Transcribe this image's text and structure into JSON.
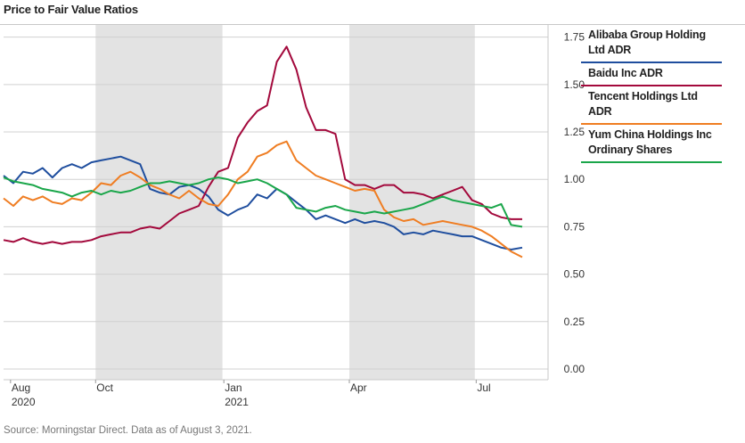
{
  "chart_data": {
    "type": "line",
    "title": "Price to Fair Value Ratios",
    "ylim": [
      0,
      1.8
    ],
    "y_ticks": [
      "1.75",
      "1.50",
      "1.25",
      "1.00",
      "0.75",
      "0.50",
      "0.25",
      "0.00"
    ],
    "x_labels": [
      {
        "month": "Aug",
        "year": "2020"
      },
      {
        "month": "Oct",
        "year": ""
      },
      {
        "month": "Jan",
        "year": "2021"
      },
      {
        "month": "Apr",
        "year": ""
      },
      {
        "month": "Jul",
        "year": ""
      }
    ],
    "x_range": [
      "2020-07-27",
      "2021-08-03"
    ],
    "shaded_periods": [
      [
        "2020-10-01",
        "2020-12-31"
      ],
      [
        "2021-04-01",
        "2021-06-30"
      ]
    ],
    "grid": "horizontal",
    "legend_position": "right",
    "series": [
      {
        "name": "Alibaba Group Holding Ltd ADR",
        "color": "#1f4e9e",
        "points": [
          [
            "2020-07-27",
            1.02
          ],
          [
            "2020-08-03",
            0.98
          ],
          [
            "2020-08-10",
            1.04
          ],
          [
            "2020-08-17",
            1.03
          ],
          [
            "2020-08-24",
            1.06
          ],
          [
            "2020-08-31",
            1.01
          ],
          [
            "2020-09-07",
            1.06
          ],
          [
            "2020-09-14",
            1.08
          ],
          [
            "2020-09-21",
            1.06
          ],
          [
            "2020-09-28",
            1.09
          ],
          [
            "2020-10-05",
            1.1
          ],
          [
            "2020-10-12",
            1.11
          ],
          [
            "2020-10-19",
            1.12
          ],
          [
            "2020-10-26",
            1.1
          ],
          [
            "2020-11-02",
            1.08
          ],
          [
            "2020-11-09",
            0.95
          ],
          [
            "2020-11-16",
            0.93
          ],
          [
            "2020-11-23",
            0.92
          ],
          [
            "2020-11-30",
            0.96
          ],
          [
            "2020-12-07",
            0.97
          ],
          [
            "2020-12-14",
            0.95
          ],
          [
            "2020-12-21",
            0.91
          ],
          [
            "2020-12-28",
            0.84
          ],
          [
            "2021-01-04",
            0.81
          ],
          [
            "2021-01-11",
            0.84
          ],
          [
            "2021-01-18",
            0.86
          ],
          [
            "2021-01-25",
            0.92
          ],
          [
            "2021-02-01",
            0.9
          ],
          [
            "2021-02-08",
            0.95
          ],
          [
            "2021-02-15",
            0.92
          ],
          [
            "2021-02-22",
            0.88
          ],
          [
            "2021-03-01",
            0.84
          ],
          [
            "2021-03-08",
            0.79
          ],
          [
            "2021-03-15",
            0.81
          ],
          [
            "2021-03-22",
            0.79
          ],
          [
            "2021-03-29",
            0.77
          ],
          [
            "2021-04-05",
            0.79
          ],
          [
            "2021-04-12",
            0.77
          ],
          [
            "2021-04-19",
            0.78
          ],
          [
            "2021-04-26",
            0.77
          ],
          [
            "2021-05-03",
            0.75
          ],
          [
            "2021-05-10",
            0.71
          ],
          [
            "2021-05-17",
            0.72
          ],
          [
            "2021-05-24",
            0.71
          ],
          [
            "2021-05-31",
            0.73
          ],
          [
            "2021-06-07",
            0.72
          ],
          [
            "2021-06-14",
            0.71
          ],
          [
            "2021-06-21",
            0.7
          ],
          [
            "2021-06-28",
            0.7
          ],
          [
            "2021-07-05",
            0.68
          ],
          [
            "2021-07-12",
            0.66
          ],
          [
            "2021-07-19",
            0.64
          ],
          [
            "2021-07-26",
            0.63
          ],
          [
            "2021-08-03",
            0.64
          ]
        ]
      },
      {
        "name": "Baidu Inc ADR",
        "color": "#a3093c",
        "points": [
          [
            "2020-07-27",
            0.68
          ],
          [
            "2020-08-03",
            0.67
          ],
          [
            "2020-08-10",
            0.69
          ],
          [
            "2020-08-17",
            0.67
          ],
          [
            "2020-08-24",
            0.66
          ],
          [
            "2020-08-31",
            0.67
          ],
          [
            "2020-09-07",
            0.66
          ],
          [
            "2020-09-14",
            0.67
          ],
          [
            "2020-09-21",
            0.67
          ],
          [
            "2020-09-28",
            0.68
          ],
          [
            "2020-10-05",
            0.7
          ],
          [
            "2020-10-12",
            0.71
          ],
          [
            "2020-10-19",
            0.72
          ],
          [
            "2020-10-26",
            0.72
          ],
          [
            "2020-11-02",
            0.74
          ],
          [
            "2020-11-09",
            0.75
          ],
          [
            "2020-11-16",
            0.74
          ],
          [
            "2020-11-23",
            0.78
          ],
          [
            "2020-11-30",
            0.82
          ],
          [
            "2020-12-07",
            0.84
          ],
          [
            "2020-12-14",
            0.86
          ],
          [
            "2020-12-21",
            0.96
          ],
          [
            "2020-12-28",
            1.04
          ],
          [
            "2021-01-04",
            1.06
          ],
          [
            "2021-01-11",
            1.22
          ],
          [
            "2021-01-18",
            1.3
          ],
          [
            "2021-01-25",
            1.36
          ],
          [
            "2021-02-01",
            1.39
          ],
          [
            "2021-02-08",
            1.62
          ],
          [
            "2021-02-15",
            1.7
          ],
          [
            "2021-02-22",
            1.58
          ],
          [
            "2021-03-01",
            1.38
          ],
          [
            "2021-03-08",
            1.26
          ],
          [
            "2021-03-15",
            1.26
          ],
          [
            "2021-03-22",
            1.24
          ],
          [
            "2021-03-29",
            1.0
          ],
          [
            "2021-04-05",
            0.97
          ],
          [
            "2021-04-12",
            0.97
          ],
          [
            "2021-04-19",
            0.95
          ],
          [
            "2021-04-26",
            0.97
          ],
          [
            "2021-05-03",
            0.97
          ],
          [
            "2021-05-10",
            0.93
          ],
          [
            "2021-05-17",
            0.93
          ],
          [
            "2021-05-24",
            0.92
          ],
          [
            "2021-05-31",
            0.9
          ],
          [
            "2021-06-07",
            0.92
          ],
          [
            "2021-06-14",
            0.94
          ],
          [
            "2021-06-21",
            0.96
          ],
          [
            "2021-06-28",
            0.89
          ],
          [
            "2021-07-05",
            0.87
          ],
          [
            "2021-07-12",
            0.82
          ],
          [
            "2021-07-19",
            0.8
          ],
          [
            "2021-07-26",
            0.79
          ],
          [
            "2021-08-03",
            0.79
          ]
        ]
      },
      {
        "name": "Tencent Holdings Ltd ADR",
        "color": "#ef7d22",
        "points": [
          [
            "2020-07-27",
            0.9
          ],
          [
            "2020-08-03",
            0.86
          ],
          [
            "2020-08-10",
            0.91
          ],
          [
            "2020-08-17",
            0.89
          ],
          [
            "2020-08-24",
            0.91
          ],
          [
            "2020-08-31",
            0.88
          ],
          [
            "2020-09-07",
            0.87
          ],
          [
            "2020-09-14",
            0.9
          ],
          [
            "2020-09-21",
            0.89
          ],
          [
            "2020-09-28",
            0.93
          ],
          [
            "2020-10-05",
            0.98
          ],
          [
            "2020-10-12",
            0.97
          ],
          [
            "2020-10-19",
            1.02
          ],
          [
            "2020-10-26",
            1.04
          ],
          [
            "2020-11-02",
            1.01
          ],
          [
            "2020-11-09",
            0.97
          ],
          [
            "2020-11-16",
            0.95
          ],
          [
            "2020-11-23",
            0.92
          ],
          [
            "2020-11-30",
            0.9
          ],
          [
            "2020-12-07",
            0.94
          ],
          [
            "2020-12-14",
            0.9
          ],
          [
            "2020-12-21",
            0.87
          ],
          [
            "2020-12-28",
            0.86
          ],
          [
            "2021-01-04",
            0.92
          ],
          [
            "2021-01-11",
            1.0
          ],
          [
            "2021-01-18",
            1.04
          ],
          [
            "2021-01-25",
            1.12
          ],
          [
            "2021-02-01",
            1.14
          ],
          [
            "2021-02-08",
            1.18
          ],
          [
            "2021-02-15",
            1.2
          ],
          [
            "2021-02-22",
            1.1
          ],
          [
            "2021-03-01",
            1.06
          ],
          [
            "2021-03-08",
            1.02
          ],
          [
            "2021-03-15",
            1.0
          ],
          [
            "2021-03-22",
            0.98
          ],
          [
            "2021-03-29",
            0.96
          ],
          [
            "2021-04-05",
            0.94
          ],
          [
            "2021-04-12",
            0.95
          ],
          [
            "2021-04-19",
            0.94
          ],
          [
            "2021-04-26",
            0.84
          ],
          [
            "2021-05-03",
            0.8
          ],
          [
            "2021-05-10",
            0.78
          ],
          [
            "2021-05-17",
            0.79
          ],
          [
            "2021-05-24",
            0.76
          ],
          [
            "2021-05-31",
            0.77
          ],
          [
            "2021-06-07",
            0.78
          ],
          [
            "2021-06-14",
            0.77
          ],
          [
            "2021-06-21",
            0.76
          ],
          [
            "2021-06-28",
            0.75
          ],
          [
            "2021-07-05",
            0.73
          ],
          [
            "2021-07-12",
            0.7
          ],
          [
            "2021-07-19",
            0.66
          ],
          [
            "2021-07-26",
            0.62
          ],
          [
            "2021-08-03",
            0.59
          ]
        ]
      },
      {
        "name": "Yum China Holdings Inc Ordinary Shares",
        "color": "#1aa64a",
        "points": [
          [
            "2020-07-27",
            1.01
          ],
          [
            "2020-08-03",
            0.99
          ],
          [
            "2020-08-10",
            0.98
          ],
          [
            "2020-08-17",
            0.97
          ],
          [
            "2020-08-24",
            0.95
          ],
          [
            "2020-08-31",
            0.94
          ],
          [
            "2020-09-07",
            0.93
          ],
          [
            "2020-09-14",
            0.91
          ],
          [
            "2020-09-21",
            0.93
          ],
          [
            "2020-09-28",
            0.94
          ],
          [
            "2020-10-05",
            0.92
          ],
          [
            "2020-10-12",
            0.94
          ],
          [
            "2020-10-19",
            0.93
          ],
          [
            "2020-10-26",
            0.94
          ],
          [
            "2020-11-02",
            0.96
          ],
          [
            "2020-11-09",
            0.98
          ],
          [
            "2020-11-16",
            0.98
          ],
          [
            "2020-11-23",
            0.99
          ],
          [
            "2020-11-30",
            0.98
          ],
          [
            "2020-12-07",
            0.97
          ],
          [
            "2020-12-14",
            0.98
          ],
          [
            "2020-12-21",
            1.0
          ],
          [
            "2020-12-28",
            1.01
          ],
          [
            "2021-01-04",
            1.0
          ],
          [
            "2021-01-11",
            0.98
          ],
          [
            "2021-01-18",
            0.99
          ],
          [
            "2021-01-25",
            1.0
          ],
          [
            "2021-02-01",
            0.98
          ],
          [
            "2021-02-08",
            0.95
          ],
          [
            "2021-02-15",
            0.92
          ],
          [
            "2021-02-22",
            0.85
          ],
          [
            "2021-03-01",
            0.84
          ],
          [
            "2021-03-08",
            0.83
          ],
          [
            "2021-03-15",
            0.85
          ],
          [
            "2021-03-22",
            0.86
          ],
          [
            "2021-03-29",
            0.84
          ],
          [
            "2021-04-05",
            0.83
          ],
          [
            "2021-04-12",
            0.82
          ],
          [
            "2021-04-19",
            0.83
          ],
          [
            "2021-04-26",
            0.82
          ],
          [
            "2021-05-03",
            0.83
          ],
          [
            "2021-05-10",
            0.84
          ],
          [
            "2021-05-17",
            0.85
          ],
          [
            "2021-05-24",
            0.87
          ],
          [
            "2021-05-31",
            0.89
          ],
          [
            "2021-06-07",
            0.91
          ],
          [
            "2021-06-14",
            0.89
          ],
          [
            "2021-06-21",
            0.88
          ],
          [
            "2021-06-28",
            0.87
          ],
          [
            "2021-07-05",
            0.86
          ],
          [
            "2021-07-12",
            0.85
          ],
          [
            "2021-07-19",
            0.87
          ],
          [
            "2021-07-26",
            0.76
          ],
          [
            "2021-08-03",
            0.75
          ]
        ]
      }
    ]
  },
  "legend_items": [
    {
      "label": "Alibaba Group Holding Ltd ADR",
      "color": "#1f4e9e"
    },
    {
      "label": "Baidu Inc ADR",
      "color": "#a3093c"
    },
    {
      "label": "Tencent Holdings Ltd ADR",
      "color": "#ef7d22"
    },
    {
      "label": "Yum China Holdings Inc Ordinary Shares",
      "color": "#1aa64a"
    }
  ],
  "source": "Source: Morningstar Direct. Data as of August 3, 2021."
}
